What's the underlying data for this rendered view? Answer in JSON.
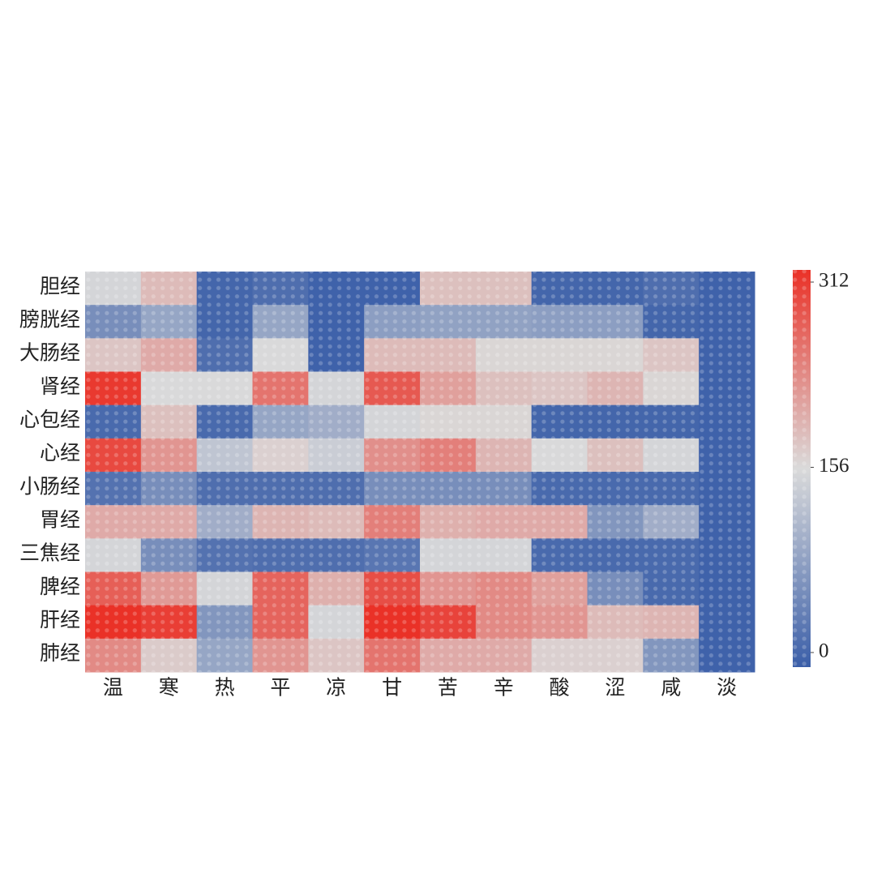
{
  "chart_data": {
    "type": "heatmap",
    "x_categories": [
      "温",
      "寒",
      "热",
      "平",
      "凉",
      "甘",
      "苦",
      "辛",
      "酸",
      "涩",
      "咸",
      "淡"
    ],
    "y_categories": [
      "胆经",
      "膀胱经",
      "大肠经",
      "肾经",
      "心包经",
      "心经",
      "小肠经",
      "胃经",
      "三焦经",
      "脾经",
      "肝经",
      "肺经"
    ],
    "values": [
      [
        150,
        185,
        10,
        20,
        5,
        5,
        180,
        180,
        10,
        10,
        20,
        5
      ],
      [
        60,
        90,
        10,
        90,
        5,
        80,
        85,
        85,
        80,
        80,
        10,
        5
      ],
      [
        175,
        200,
        20,
        155,
        5,
        185,
        185,
        160,
        160,
        160,
        175,
        5
      ],
      [
        305,
        155,
        155,
        250,
        150,
        275,
        210,
        180,
        175,
        190,
        160,
        5
      ],
      [
        15,
        180,
        15,
        90,
        100,
        150,
        160,
        160,
        10,
        10,
        10,
        5
      ],
      [
        290,
        220,
        130,
        165,
        140,
        225,
        240,
        190,
        155,
        180,
        150,
        5
      ],
      [
        25,
        60,
        20,
        20,
        20,
        60,
        60,
        60,
        15,
        15,
        15,
        5
      ],
      [
        200,
        200,
        100,
        190,
        185,
        240,
        195,
        200,
        200,
        70,
        100,
        5
      ],
      [
        150,
        60,
        25,
        20,
        20,
        30,
        150,
        150,
        15,
        15,
        15,
        5
      ],
      [
        270,
        215,
        150,
        265,
        195,
        285,
        220,
        230,
        210,
        60,
        15,
        5
      ],
      [
        312,
        300,
        70,
        265,
        150,
        312,
        295,
        230,
        220,
        185,
        190,
        5
      ],
      [
        230,
        170,
        90,
        220,
        175,
        250,
        200,
        200,
        165,
        165,
        70,
        5
      ]
    ],
    "zlim": [
      0,
      312
    ],
    "zticks": [
      0,
      156,
      312
    ],
    "colorscale": [
      {
        "value": 0,
        "color": "#3a5ea8"
      },
      {
        "value": 156,
        "color": "#dadada"
      },
      {
        "value": 312,
        "color": "#ea3127"
      }
    ]
  }
}
